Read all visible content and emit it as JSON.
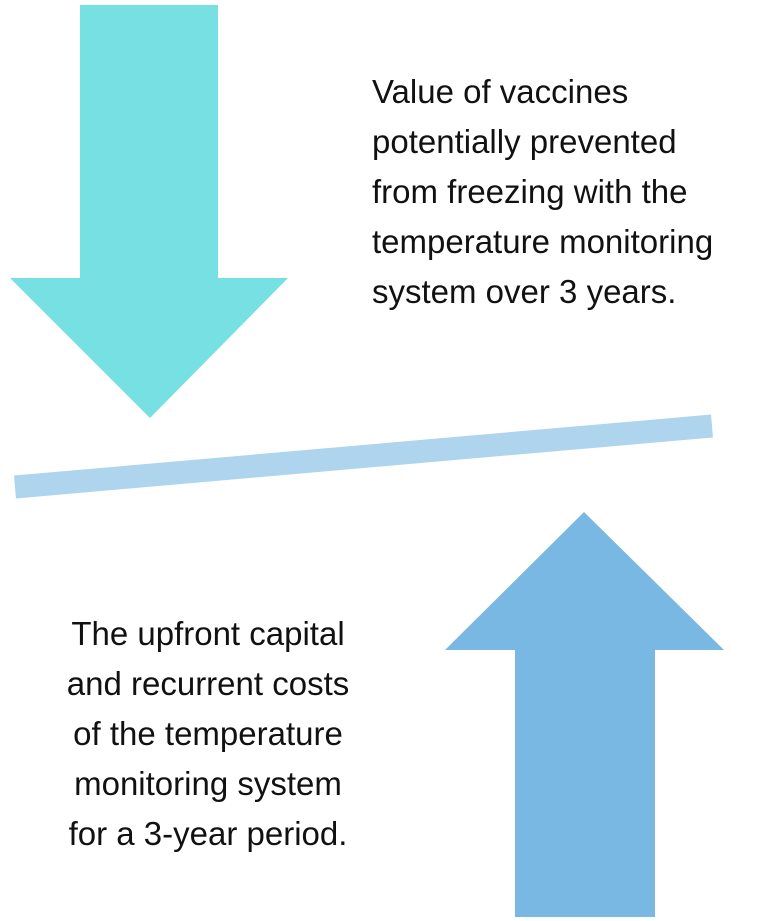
{
  "top_text": {
    "lines": [
      "Value of vaccines",
      "potentially prevented",
      "from freezing with the",
      "temperature monitoring",
      "system over 3 years."
    ]
  },
  "bottom_text": {
    "lines": [
      "The upfront capital",
      "and recurrent costs",
      "of the temperature",
      "monitoring system",
      "for a 3-year period."
    ]
  }
}
